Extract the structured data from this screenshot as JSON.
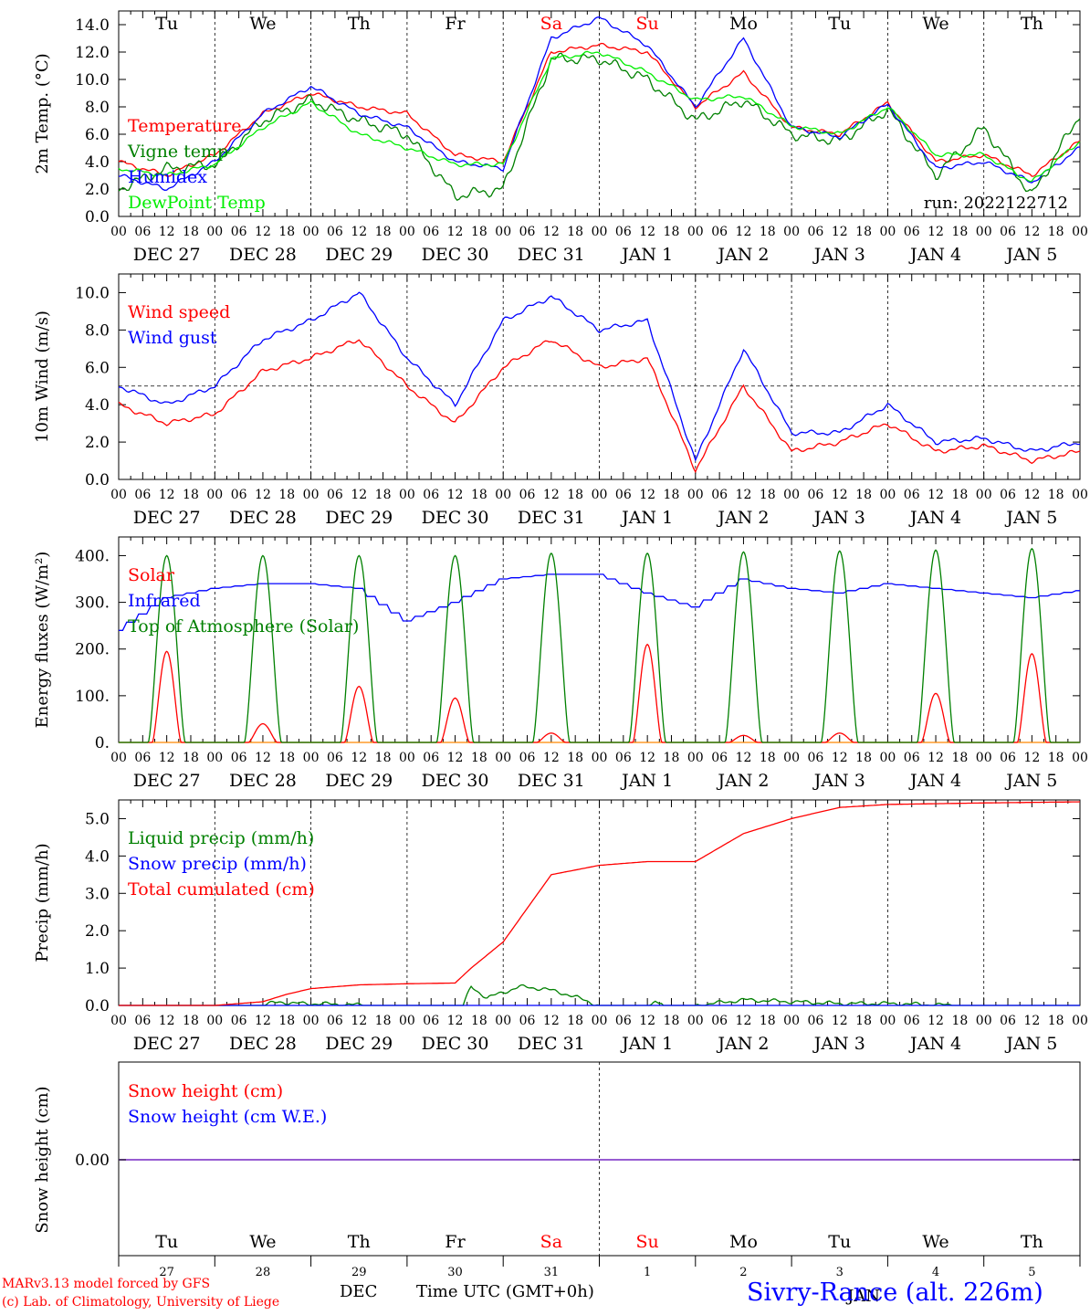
{
  "meteogram": {
    "run_label": "run: 2022122712",
    "model_credit": "MARv3.13 model forced by GFS",
    "lab_credit": "(c) Lab. of Climatology, University of Liege",
    "xlabel": "Time UTC (GMT+0h)",
    "station": "Sivry-Rance (alt. 226m)",
    "bottom_month": "DEC",
    "bottom_month_2": "JAN"
  },
  "time_axis": {
    "hour_ticks": [
      "00",
      "06",
      "12",
      "18"
    ],
    "end_tick": "00",
    "dates": [
      "DEC 27",
      "DEC 28",
      "DEC 29",
      "DEC 30",
      "DEC 31",
      "JAN 1",
      "JAN 2",
      "JAN 3",
      "JAN 4",
      "JAN 5"
    ],
    "weekdays": [
      "Tu",
      "We",
      "Th",
      "Fr",
      "Sa",
      "Su",
      "Mo",
      "Tu",
      "We",
      "Th"
    ],
    "weekend_days": [
      4,
      5
    ],
    "day_numbers": [
      "27",
      "28",
      "29",
      "30",
      "31",
      "1",
      "2",
      "3",
      "4",
      "5"
    ]
  },
  "colors": {
    "temperature": "#ff0000",
    "vigne": "#008000",
    "humidex": "#0000ff",
    "dewpoint": "#00ee00",
    "weekend": "#ff0000",
    "snow_line": "#8844cc"
  },
  "chart_data": [
    {
      "type": "line",
      "ylabel": "2m Temp. (°C)",
      "ylim": [
        0,
        15
      ],
      "yticks": [
        "0.0",
        "2.0",
        "4.0",
        "6.0",
        "8.0",
        "10.0",
        "12.0",
        "14.0"
      ],
      "x_hours": [
        0,
        12,
        24,
        36,
        48,
        60,
        72,
        84,
        96,
        108,
        120,
        132,
        144,
        156,
        168,
        180,
        192,
        204,
        216,
        228,
        240
      ],
      "series": [
        {
          "name": "Temperature",
          "color": "#ff0000",
          "values": [
            4.0,
            3.0,
            4.5,
            7.5,
            9.0,
            8.0,
            7.5,
            4.5,
            4.0,
            12.0,
            12.5,
            12.0,
            8.0,
            10.5,
            6.5,
            6.0,
            8.3,
            4.0,
            4.5,
            3.0,
            5.5
          ]
        },
        {
          "name": "Vigne temp",
          "color": "#008000",
          "values": [
            2.0,
            3.5,
            3.8,
            7.0,
            8.5,
            7.0,
            6.0,
            1.5,
            2.0,
            11.5,
            11.5,
            10.0,
            7.0,
            8.5,
            6.0,
            5.5,
            7.8,
            3.0,
            6.5,
            1.5,
            7.5
          ]
        },
        {
          "name": "Humidex",
          "color": "#0000ff",
          "values": [
            3.0,
            2.0,
            4.0,
            7.5,
            9.5,
            7.5,
            6.5,
            4.0,
            3.5,
            13.0,
            14.5,
            12.5,
            8.0,
            13.0,
            6.5,
            5.8,
            8.2,
            3.5,
            4.0,
            2.5,
            5.0
          ]
        },
        {
          "name": "DewPoint Temp",
          "color": "#00ee00",
          "values": [
            3.5,
            3.0,
            3.8,
            6.5,
            8.3,
            6.0,
            5.0,
            3.8,
            3.8,
            11.5,
            12.0,
            10.5,
            8.5,
            8.8,
            6.6,
            6.0,
            8.0,
            4.5,
            4.5,
            2.5,
            5.5
          ]
        }
      ]
    },
    {
      "type": "line",
      "ylabel": "10m Wind (m/s)",
      "ylim": [
        0,
        11
      ],
      "yticks": [
        "0.0",
        "2.0",
        "4.0",
        "6.0",
        "8.0",
        "10.0"
      ],
      "reference_line": 5.0,
      "x_hours": [
        0,
        12,
        24,
        36,
        48,
        60,
        72,
        84,
        96,
        108,
        120,
        132,
        144,
        156,
        168,
        180,
        192,
        204,
        216,
        228,
        240
      ],
      "series": [
        {
          "name": "Wind speed",
          "color": "#ff0000",
          "values": [
            4.0,
            3.0,
            3.5,
            5.8,
            6.5,
            7.5,
            5.0,
            3.0,
            6.0,
            7.5,
            6.0,
            6.5,
            0.5,
            5.0,
            1.5,
            2.0,
            3.0,
            1.5,
            1.8,
            1.0,
            1.5
          ]
        },
        {
          "name": "Wind gust",
          "color": "#0000ff",
          "values": [
            5.0,
            4.0,
            5.0,
            7.5,
            8.5,
            10.0,
            6.5,
            4.0,
            8.5,
            9.8,
            8.0,
            8.5,
            1.0,
            7.0,
            2.5,
            2.5,
            4.0,
            2.0,
            2.2,
            1.5,
            2.0
          ]
        }
      ]
    },
    {
      "type": "line",
      "ylabel": "Energy fluxes (W/m²)",
      "ylim": [
        0,
        440
      ],
      "yticks": [
        "0.",
        "100.",
        "200.",
        "300.",
        "400."
      ],
      "x_hours": [
        0,
        12,
        24,
        36,
        48,
        60,
        72,
        84,
        96,
        108,
        120,
        132,
        144,
        156,
        168,
        180,
        192,
        204,
        216,
        228,
        240
      ],
      "solar_peak_hour": 12,
      "series": [
        {
          "name": "Solar",
          "color": "#ff0000",
          "daily_peaks": [
            195,
            40,
            120,
            95,
            20,
            210,
            15,
            20,
            105,
            190
          ]
        },
        {
          "name": "Infrared",
          "color": "#0000ff",
          "values": [
            240,
            310,
            330,
            340,
            340,
            330,
            260,
            300,
            350,
            360,
            360,
            320,
            290,
            350,
            330,
            320,
            340,
            330,
            320,
            310,
            325
          ]
        },
        {
          "name": "Top of Atmosphere (Solar)",
          "color": "#008000",
          "daily_peaks": [
            400,
            400,
            400,
            400,
            405,
            405,
            408,
            410,
            412,
            415
          ]
        }
      ]
    },
    {
      "type": "line",
      "ylabel": "Precip (mm/h)",
      "ylim": [
        0,
        5.5
      ],
      "yticks": [
        "0.0",
        "1.0",
        "2.0",
        "3.0",
        "4.0",
        "5.0"
      ],
      "series": [
        {
          "name": "Liquid precip (mm/h)",
          "color": "#008000",
          "x_hours": [
            0,
            36,
            40,
            44,
            48,
            64,
            86,
            88,
            92,
            96,
            100,
            106,
            112,
            120,
            132,
            134,
            136,
            144,
            156,
            168,
            180,
            192,
            210,
            240
          ],
          "values": [
            0,
            0,
            0.1,
            0.05,
            0.05,
            0,
            0,
            0.5,
            0.2,
            0.35,
            0.5,
            0.45,
            0.3,
            0,
            0,
            0.1,
            0,
            0,
            0.15,
            0.1,
            0.05,
            0.05,
            0,
            0
          ]
        },
        {
          "name": "Snow precip (mm/h)",
          "color": "#0000ff",
          "x_hours": [
            0,
            240
          ],
          "values": [
            0,
            0
          ]
        },
        {
          "name": "Total cumulated (cm)",
          "color": "#ff0000",
          "x_hours": [
            0,
            24,
            36,
            42,
            48,
            60,
            72,
            84,
            88,
            96,
            108,
            120,
            132,
            144,
            156,
            168,
            180,
            192,
            204,
            216,
            240
          ],
          "values": [
            0,
            0,
            0.1,
            0.3,
            0.45,
            0.55,
            0.58,
            0.6,
            1.0,
            1.7,
            3.5,
            3.75,
            3.85,
            3.85,
            4.6,
            5.0,
            5.3,
            5.38,
            5.4,
            5.42,
            5.45
          ]
        }
      ]
    },
    {
      "type": "line",
      "ylabel": "Snow height (cm)",
      "yticks": [
        "0.00"
      ],
      "series": [
        {
          "name": "Snow height (cm)",
          "color": "#ff0000",
          "values": [
            0,
            0
          ]
        },
        {
          "name": "Snow height (cm W.E.)",
          "color": "#0000ff",
          "values": [
            0,
            0
          ]
        }
      ]
    }
  ]
}
